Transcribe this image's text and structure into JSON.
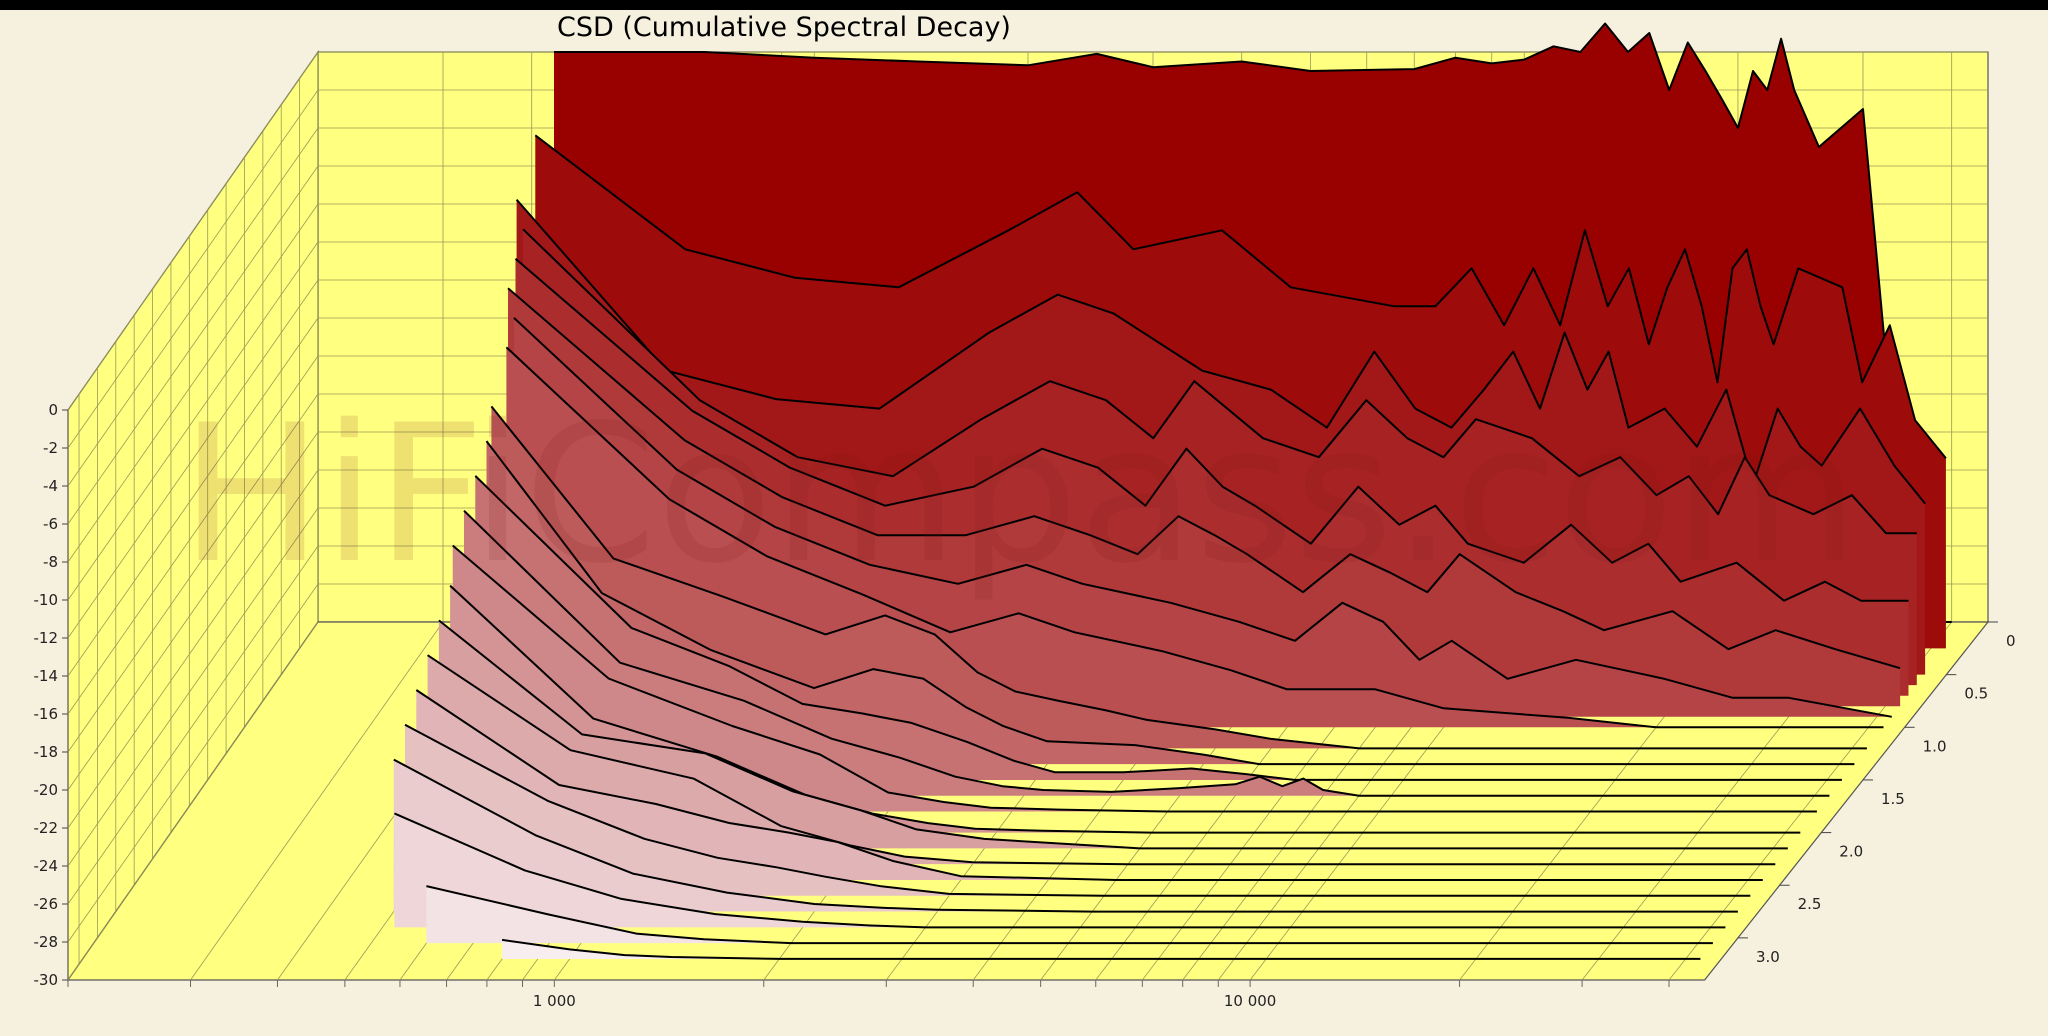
{
  "chart_data": {
    "type": "area",
    "subtype": "waterfall-3d",
    "title": "CSD (Cumulative Spectral Decay)",
    "watermark": "HiFiCompass.com",
    "xscale": "log",
    "xlim": [
      200,
      45000
    ],
    "x_tick_labels": [
      "1 000",
      "10 000"
    ],
    "x_tick_values": [
      1000,
      10000
    ],
    "ylim": [
      -30,
      0
    ],
    "y_tick_labels": [
      "0",
      "-2",
      "-4",
      "-6",
      "-8",
      "-10",
      "-12",
      "-14",
      "-16",
      "-18",
      "-20",
      "-22",
      "-24",
      "-26",
      "-28",
      "-30"
    ],
    "z_tick_labels": [
      "0",
      "0.5",
      "1.0",
      "1.5",
      "2.0",
      "2.5",
      "3.0"
    ],
    "z_tick_values": [
      0,
      0.5,
      1.0,
      1.5,
      2.0,
      2.5,
      3.0
    ],
    "zlim": [
      0,
      3.4
    ],
    "plane_color": "#ffff80",
    "front_color": "#f8eef0",
    "back_color": "#990000",
    "slices": [
      {
        "t": 0.0,
        "f": [
          430,
          700,
          1000,
          1400,
          2000,
          2500,
          3000,
          4000,
          5000,
          7000,
          8000,
          9000,
          10000,
          11000,
          12000,
          13000,
          14000,
          15000,
          16000,
          17000,
          18000,
          19000,
          20000,
          21000,
          22000,
          23000,
          24000,
          26000,
          30000,
          35000,
          40000
        ],
        "db": [
          0,
          0,
          -0.3,
          -0.5,
          -0.7,
          -0.1,
          -0.8,
          -0.5,
          -1.0,
          -0.9,
          -0.3,
          -0.6,
          -0.4,
          0.3,
          0,
          1.5,
          0,
          1,
          -2,
          0.5,
          -1,
          -2.5,
          -4,
          -1,
          -2,
          0.7,
          -2,
          -5,
          -3,
          -30,
          -30
        ]
      },
      {
        "t": 0.25,
        "f": [
          430,
          700,
          1000,
          1400,
          2000,
          2500,
          3000,
          4000,
          5000,
          7000,
          8000,
          9000,
          10000,
          11000,
          12000,
          13000,
          14000,
          15000,
          16000,
          17000,
          18000,
          19000,
          20000,
          21000,
          22000,
          23000,
          24000,
          26000,
          30000,
          32000,
          35000,
          38000,
          42000
        ],
        "db": [
          -3,
          -9,
          -10.5,
          -11,
          -8,
          -6,
          -9,
          -8,
          -11,
          -12,
          -12,
          -10,
          -13,
          -10,
          -13,
          -8,
          -12,
          -10,
          -14,
          -11,
          -9,
          -12,
          -16,
          -10,
          -9,
          -12,
          -14,
          -10,
          -11,
          -16,
          -13,
          -18,
          -20
        ]
      },
      {
        "t": 0.5,
        "f": [
          430,
          700,
          1000,
          1400,
          2000,
          2500,
          3000,
          4000,
          5000,
          6000,
          7000,
          8000,
          9000,
          10000,
          11000,
          12000,
          13000,
          14000,
          15000,
          16000,
          18000,
          20000,
          22000,
          24000,
          26000,
          28000,
          30000,
          34000,
          38000,
          42000
        ],
        "db": [
          -5,
          -14,
          -15.5,
          -16,
          -12,
          -10,
          -11,
          -14,
          -15,
          -17,
          -13,
          -16,
          -17,
          -15,
          -13,
          -16,
          -12,
          -15,
          -13,
          -17,
          -16,
          -18,
          -15,
          -20,
          -16,
          -18,
          -19,
          -16,
          -19,
          -21
        ]
      },
      {
        "t": 0.6,
        "f": [
          450,
          800,
          1100,
          1500,
          2000,
          2500,
          3000,
          3500,
          4000,
          5000,
          6000,
          7000,
          8000,
          9000,
          10000,
          12000,
          14000,
          16000,
          18000,
          20000,
          22000,
          24000,
          26000,
          30000,
          34000,
          38000,
          42000
        ],
        "db": [
          -6,
          -15,
          -18,
          -19,
          -16,
          -14,
          -15,
          -17,
          -14,
          -17,
          -18,
          -15,
          -17,
          -18,
          -16,
          -17,
          -19,
          -18,
          -20,
          -19,
          -21,
          -18,
          -20,
          -21,
          -20,
          -22,
          -22
        ]
      },
      {
        "t": 0.7,
        "f": [
          450,
          800,
          1100,
          1500,
          2000,
          2500,
          3000,
          3500,
          4000,
          4500,
          5000,
          6000,
          7000,
          8000,
          9000,
          10000,
          12000,
          14000,
          16000,
          18000,
          20000,
          24000,
          28000,
          32000,
          36000,
          42000
        ],
        "db": [
          -7,
          -15,
          -18,
          -20,
          -19,
          -17,
          -18,
          -20,
          -17,
          -19,
          -20,
          -22,
          -19,
          -21,
          -20,
          -22,
          -23,
          -21,
          -23,
          -22,
          -24,
          -23,
          -25,
          -24,
          -25,
          -25
        ]
      },
      {
        "t": 0.8,
        "f": [
          450,
          800,
          1100,
          1500,
          2000,
          2500,
          3000,
          3500,
          4000,
          4500,
          5000,
          6000,
          7000,
          8000,
          9000,
          10000,
          12000,
          14000,
          16000,
          20000,
          24000,
          28000,
          34000,
          42000
        ],
        "db": [
          -8,
          -16,
          -19,
          -21,
          -21,
          -20,
          -21,
          -22,
          -20,
          -21,
          -22,
          -24,
          -22,
          -23,
          -24,
          -22,
          -24,
          -25,
          -26,
          -25,
          -27,
          -26,
          -27,
          -28
        ]
      },
      {
        "t": 0.9,
        "f": [
          470,
          800,
          1100,
          1500,
          2000,
          2500,
          3000,
          4000,
          5000,
          6000,
          7000,
          8000,
          9000,
          10000,
          12000,
          15000,
          20000,
          25000,
          30000,
          42000
        ],
        "db": [
          -9,
          -17,
          -20,
          -22,
          -23,
          -22,
          -23,
          -24,
          -25,
          -26,
          -24,
          -25,
          -27,
          -26,
          -28,
          -27,
          -28,
          -29,
          -29,
          -30
        ]
      },
      {
        "t": 1.0,
        "f": [
          470,
          800,
          1100,
          1500,
          2000,
          2500,
          3000,
          4000,
          5000,
          6000,
          8000,
          10000,
          15000,
          20000,
          30000,
          42000
        ],
        "db": [
          -10,
          -18,
          -21,
          -23,
          -25,
          -24,
          -25,
          -26,
          -27,
          -28,
          -28,
          -29,
          -29.5,
          -30,
          -30,
          -30
        ]
      },
      {
        "t": 1.2,
        "f": [
          470,
          700,
          1000,
          1400,
          1700,
          2000,
          2300,
          2600,
          3000,
          3500,
          4000,
          5000,
          6000,
          8000,
          10000,
          15000,
          20000,
          42000
        ],
        "db": [
          -12,
          -20,
          -22,
          -24,
          -23,
          -24,
          -26,
          -27,
          -27.5,
          -28,
          -28.5,
          -29,
          -29.5,
          -30,
          -30,
          -30,
          -30,
          -30
        ]
      },
      {
        "t": 1.35,
        "f": [
          480,
          700,
          1000,
          1400,
          1700,
          2000,
          2300,
          2600,
          3000,
          4000,
          5000,
          6000,
          8000,
          42000
        ],
        "db": [
          -13,
          -21,
          -24,
          -26,
          -25,
          -25.5,
          -27,
          -28,
          -28.8,
          -29,
          -29.5,
          -30,
          -30,
          -30
        ]
      },
      {
        "t": 1.5,
        "f": [
          480,
          800,
          1100,
          1400,
          1700,
          2000,
          2400,
          2800,
          3200,
          4000,
          5000,
          6000,
          7000,
          8000,
          42000
        ],
        "db": [
          -14,
          -22,
          -24,
          -26,
          -26.5,
          -27,
          -28,
          -29,
          -29.6,
          -29.6,
          -29.4,
          -29.7,
          -30,
          -30,
          -30
        ]
      },
      {
        "t": 1.65,
        "f": [
          480,
          800,
          1200,
          1600,
          2000,
          2400,
          2800,
          3200,
          4000,
          5000,
          6000,
          6500,
          7000,
          7500,
          8000,
          9000,
          42000
        ],
        "db": [
          -15,
          -23,
          -25,
          -27,
          -28,
          -29,
          -29.5,
          -29.7,
          -29.8,
          -29.6,
          -29.4,
          -29,
          -29.5,
          -29.1,
          -29.7,
          -30,
          -30
        ]
      },
      {
        "t": 1.8,
        "f": [
          480,
          800,
          1200,
          1600,
          2000,
          2400,
          2800,
          3500,
          5000,
          8000,
          42000
        ],
        "db": [
          -16,
          -23,
          -25.5,
          -27,
          -29,
          -29.5,
          -29.8,
          -29.9,
          -30,
          -30,
          -30
        ]
      },
      {
        "t": 2.0,
        "f": [
          500,
          800,
          1200,
          1600,
          2000,
          2400,
          2800,
          3500,
          5000,
          8000,
          42000
        ],
        "db": [
          -17,
          -24,
          -26,
          -28,
          -29,
          -29.5,
          -29.8,
          -29.9,
          -30,
          -30,
          -30
        ]
      },
      {
        "t": 2.15,
        "f": [
          500,
          800,
          1200,
          1600,
          2000,
          2400,
          3000,
          5000,
          42000
        ],
        "db": [
          -18,
          -24,
          -25,
          -27,
          -28,
          -29,
          -29.5,
          -30,
          -30
        ]
      },
      {
        "t": 2.3,
        "f": [
          500,
          800,
          1200,
          1600,
          2000,
          2400,
          3000,
          5000,
          42000
        ],
        "db": [
          -19,
          -24,
          -25.5,
          -28,
          -29,
          -29.6,
          -29.9,
          -30,
          -30
        ]
      },
      {
        "t": 2.45,
        "f": [
          500,
          800,
          1100,
          1400,
          1700,
          2000,
          2400,
          3000,
          5000,
          42000
        ],
        "db": [
          -20,
          -25,
          -26,
          -27,
          -27.5,
          -28,
          -29,
          -29.8,
          -30,
          -30
        ]
      },
      {
        "t": 2.6,
        "f": [
          500,
          800,
          1100,
          1400,
          1700,
          2000,
          2400,
          3000,
          5000,
          42000
        ],
        "db": [
          -21,
          -25,
          -27,
          -28,
          -28.5,
          -29,
          -29.5,
          -29.9,
          -30,
          -30
        ]
      },
      {
        "t": 2.75,
        "f": [
          500,
          800,
          1100,
          1500,
          2000,
          2500,
          3000,
          5000,
          42000
        ],
        "db": [
          -22,
          -26,
          -28,
          -29,
          -29.6,
          -29.8,
          -29.9,
          -30,
          -30
        ]
      },
      {
        "t": 2.9,
        "f": [
          520,
          800,
          1100,
          1500,
          2000,
          2500,
          3000,
          42000
        ],
        "db": [
          -24,
          -27,
          -28.5,
          -29.3,
          -29.7,
          -29.9,
          -30,
          -30
        ]
      },
      {
        "t": 3.05,
        "f": [
          600,
          900,
          1200,
          1500,
          2000,
          3000,
          42000
        ],
        "db": [
          -27,
          -28.5,
          -29.5,
          -29.8,
          -30,
          -30,
          -30
        ]
      },
      {
        "t": 3.2,
        "f": [
          800,
          1000,
          1200,
          1400,
          2000,
          42000
        ],
        "db": [
          -29,
          -29.5,
          -29.8,
          -29.9,
          -30,
          -30
        ]
      }
    ]
  }
}
